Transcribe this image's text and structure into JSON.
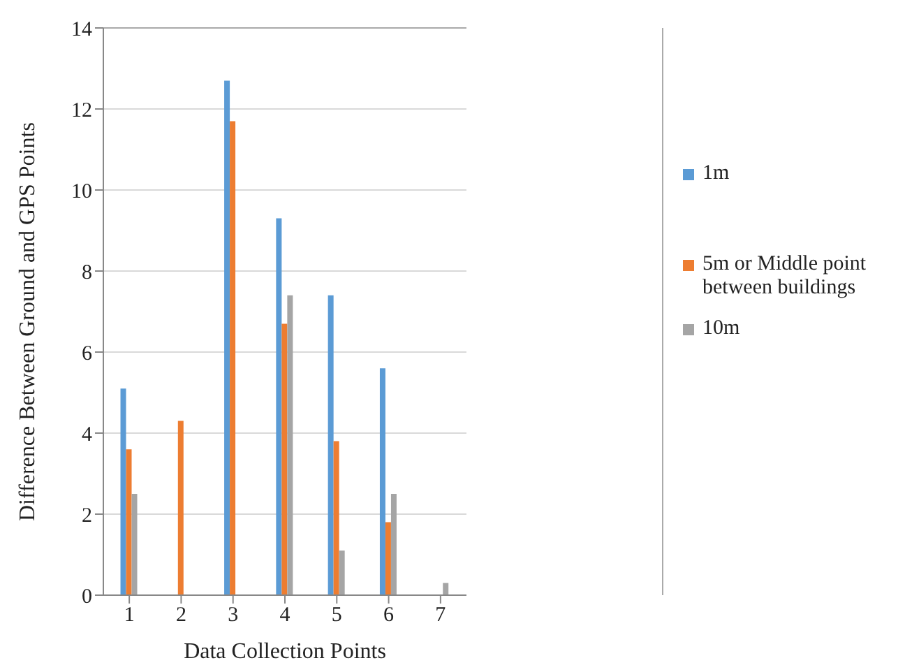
{
  "chart_data": {
    "type": "bar",
    "xlabel": "Data Collection Points",
    "ylabel": "Difference Between Ground and GPS Points",
    "categories": [
      "1",
      "2",
      "3",
      "4",
      "5",
      "6",
      "7"
    ],
    "series": [
      {
        "name": "1m",
        "color": "#5b9bd5",
        "values": [
          5.1,
          null,
          12.7,
          9.3,
          7.4,
          5.6,
          null
        ]
      },
      {
        "name": "5m or Middle point between buildings",
        "color": "#ed7d31",
        "values": [
          3.6,
          4.3,
          11.7,
          6.7,
          3.8,
          1.8,
          null
        ]
      },
      {
        "name": "10m",
        "color": "#a5a5a5",
        "values": [
          2.5,
          null,
          null,
          7.4,
          1.1,
          2.5,
          0.3
        ]
      }
    ],
    "ylim": [
      0,
      14
    ],
    "yticks": [
      0,
      2,
      4,
      6,
      8,
      10,
      12,
      14
    ],
    "grid": "y",
    "legend": "right"
  }
}
